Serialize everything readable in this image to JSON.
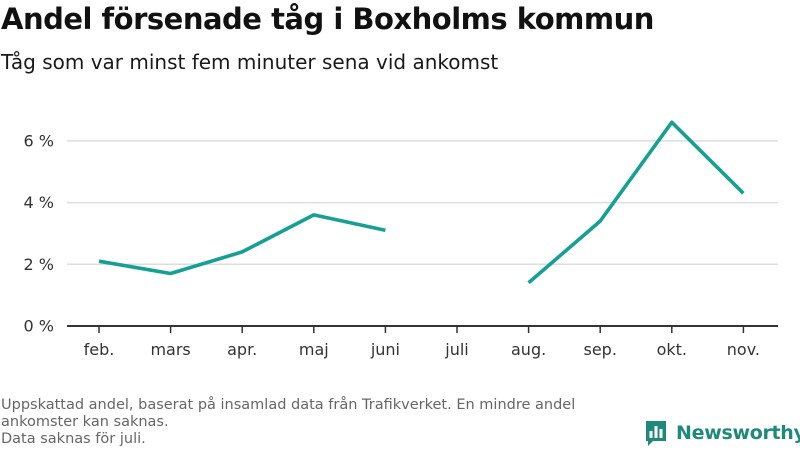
{
  "chart_data": {
    "type": "line",
    "title": "Andel försenade tåg i Boxholms kommun",
    "subtitle": "Tåg som var minst fem minuter sena vid ankomst",
    "categories": [
      "feb.",
      "mars",
      "apr.",
      "maj",
      "juni",
      "juli",
      "aug.",
      "sep.",
      "okt.",
      "nov."
    ],
    "series": [
      {
        "values": [
          2.1,
          1.7,
          2.4,
          3.6,
          3.1,
          null,
          1.4,
          3.4,
          6.6,
          4.3
        ],
        "color": "#15a093"
      }
    ],
    "ylim": [
      0,
      7
    ],
    "yticks": [
      0,
      2,
      4,
      6
    ],
    "ytick_labels": [
      "0 %",
      "2 %",
      "4 %",
      "6 %"
    ],
    "grid": true,
    "legend": "none",
    "gridline_color": "#dddddd",
    "axis_color": "#333333"
  },
  "footnote": {
    "line1": "Uppskattad andel, baserat på insamlad data från Trafikverket. En mindre andel ankomster kan saknas.",
    "line2": "Data saknas för juli."
  },
  "brand": {
    "name": "Newsworthy",
    "logo_icon": "bar-chart-speech-bubble-icon",
    "color": "#1f8a7a"
  }
}
